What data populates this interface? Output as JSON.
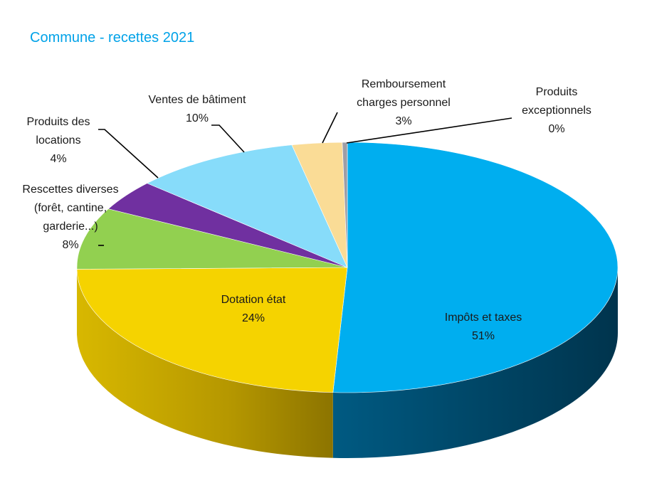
{
  "chart_data": {
    "type": "pie",
    "title": "Commune - recettes 2021",
    "title_color": "#00A2E8",
    "style": "3d",
    "slices": [
      {
        "label_lines": [
          "Impôts et taxes"
        ],
        "value": 51,
        "value_label": "51%",
        "color": "#00AEEF"
      },
      {
        "label_lines": [
          "Dotation état"
        ],
        "value": 24,
        "value_label": "24%",
        "color": "#F5D300"
      },
      {
        "label_lines": [
          "Rescettes diverses",
          "(forêt, cantine,",
          "garderie...)"
        ],
        "value": 8,
        "value_label": "8%",
        "color": "#92D050"
      },
      {
        "label_lines": [
          "Produits des",
          "locations"
        ],
        "value": 4,
        "value_label": "4%",
        "color": "#7030A0"
      },
      {
        "label_lines": [
          "Ventes de bâtiment"
        ],
        "value": 10,
        "value_label": "10%",
        "color": "#87DCFA"
      },
      {
        "label_lines": [
          "Remboursement",
          "charges personnel"
        ],
        "value": 3,
        "value_label": "3%",
        "color": "#FADC96"
      },
      {
        "label_lines": [
          "Produits",
          "exceptionnels"
        ],
        "value": 0.3,
        "value_label": "0%",
        "color": "#9E9EA6"
      }
    ]
  }
}
